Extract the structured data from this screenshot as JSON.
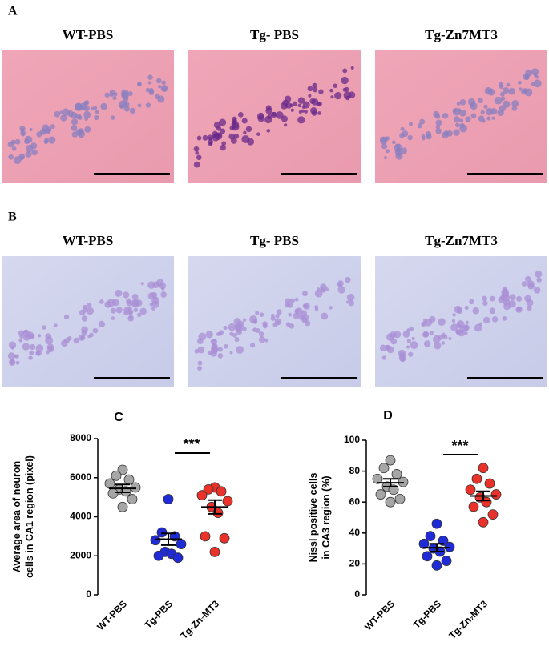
{
  "panels": [
    {
      "label": "A",
      "titles": [
        "WT-PBS",
        "Tg- PBS",
        "Tg-Zn7MT3"
      ]
    },
    {
      "label": "B",
      "titles": [
        "WT-PBS",
        "Tg- PBS",
        "Tg-Zn7MT3"
      ]
    }
  ],
  "chart_data": [
    {
      "type": "dotplot",
      "label": "C",
      "ylabel": [
        "Average area of neuron",
        "cells in CA1 region (pixel)"
      ],
      "categories": [
        "WT-PBS",
        "Tg-PBS",
        "Tg-Zn₇MT3"
      ],
      "colors": [
        "#a6a6a6",
        "#1f2bd6",
        "#e8322a"
      ],
      "points": [
        [
          6400,
          6100,
          5900,
          5700,
          5500,
          5400,
          5300,
          5200,
          4900,
          4500
        ],
        [
          4900,
          3200,
          3000,
          2800,
          2600,
          2200,
          2100,
          2000,
          1900
        ],
        [
          5500,
          5400,
          5300,
          5100,
          4800,
          4500,
          4200,
          3000,
          2900,
          2200
        ]
      ],
      "mean": [
        5450,
        2850,
        4500
      ],
      "sem": [
        200,
        300,
        350
      ],
      "annotation": "***",
      "ylim": [
        0,
        8000
      ],
      "yticks": [
        0,
        2000,
        4000,
        6000,
        8000
      ]
    },
    {
      "type": "dotplot",
      "label": "D",
      "ylabel": [
        "Nissl positive cells",
        "in CA3 region  (%)"
      ],
      "categories": [
        "WT-PBS",
        "Tg-PBS",
        "Tg-Zn₇MT3"
      ],
      "colors": [
        "#a6a6a6",
        "#1f2bd6",
        "#e8322a"
      ],
      "points": [
        [
          87,
          82,
          78,
          75,
          73,
          70,
          68,
          65,
          62,
          60
        ],
        [
          46,
          38,
          35,
          33,
          31,
          30,
          28,
          25,
          22,
          19
        ],
        [
          82,
          75,
          72,
          68,
          65,
          63,
          60,
          57,
          52,
          47
        ]
      ],
      "mean": [
        72.5,
        30.5,
        64
      ],
      "sem": [
        2.5,
        2.5,
        3
      ],
      "annotation": "***",
      "ylim": [
        0,
        100
      ],
      "yticks": [
        0,
        20,
        40,
        60,
        80,
        100
      ]
    }
  ]
}
